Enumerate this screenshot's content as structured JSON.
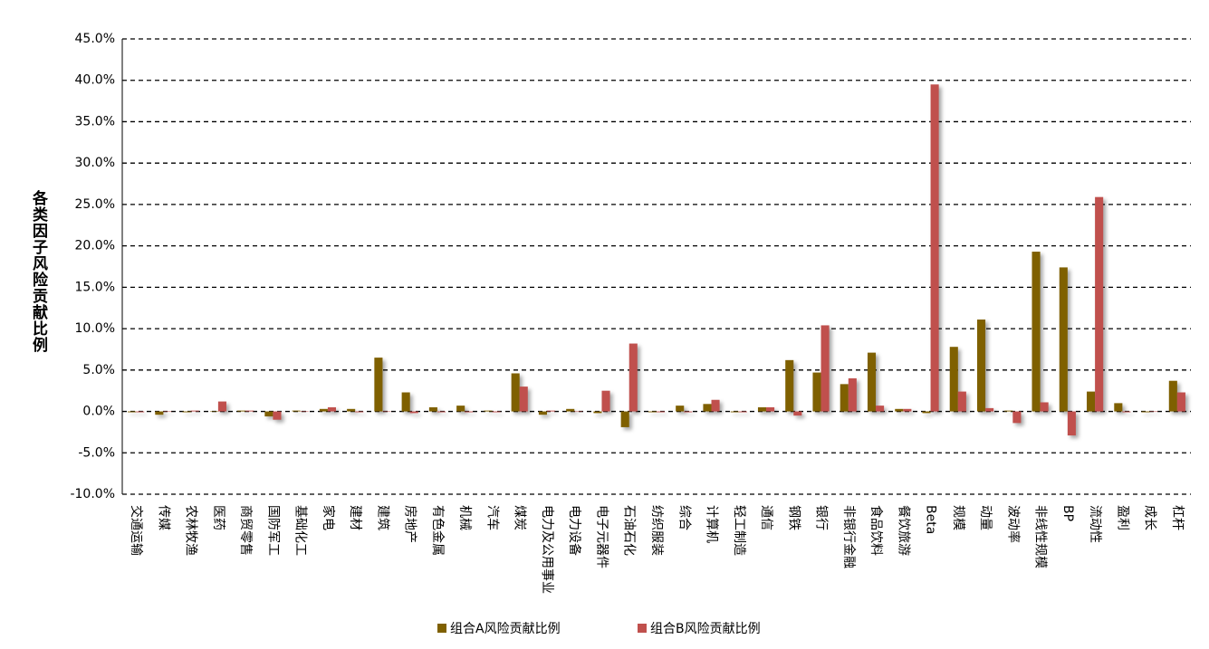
{
  "chart_data": {
    "type": "bar",
    "y_label": "各类因子风险贡献比例",
    "categories": [
      "交通运输",
      "传媒",
      "农林牧渔",
      "医药",
      "商贸零售",
      "国防军工",
      "基础化工",
      "家电",
      "建材",
      "建筑",
      "房地产",
      "有色金属",
      "机械",
      "汽车",
      "煤炭",
      "电力及公用事业",
      "电力设备",
      "电子元器件",
      "石油石化",
      "纺织服装",
      "综合",
      "计算机",
      "轻工制造",
      "通信",
      "钢铁",
      "银行",
      "非银行金融",
      "食品饮料",
      "餐饮旅游",
      "Beta",
      "规模",
      "动量",
      "波动率",
      "非线性规模",
      "BP",
      "流动性",
      "盈利",
      "成长",
      "杠杆"
    ],
    "series": [
      {
        "name": "组合A风险贡献比例",
        "color": "#7f6000",
        "values": [
          -0.1,
          -0.4,
          -0.1,
          0,
          0.1,
          -0.6,
          0.1,
          0.3,
          0.3,
          6.5,
          2.3,
          0.5,
          0.7,
          0.1,
          4.6,
          -0.4,
          0.3,
          -0.2,
          -1.9,
          -0.1,
          0.7,
          0.9,
          -0.1,
          0.5,
          6.2,
          4.7,
          3.3,
          7.1,
          0.3,
          -0.2,
          7.8,
          11.1,
          0.1,
          19.3,
          17.4,
          2.4,
          1.0,
          -0.1,
          3.7
        ]
      },
      {
        "name": "组合B风险贡献比例",
        "color": "#c0504d",
        "values": [
          -0.1,
          0,
          0.1,
          1.2,
          0.1,
          -1.0,
          0,
          0.5,
          -0.1,
          0,
          -0.2,
          -0.1,
          -0.1,
          -0.1,
          3.0,
          0.1,
          0,
          2.5,
          8.2,
          -0.1,
          -0.1,
          1.4,
          -0.1,
          0.5,
          -0.5,
          10.4,
          4.0,
          0.7,
          0.3,
          39.5,
          2.4,
          0.4,
          -1.4,
          1.1,
          -2.9,
          25.9,
          -0.1,
          0,
          2.3
        ]
      }
    ],
    "ylim": [
      -10,
      45
    ],
    "yticks": [
      {
        "value": -10,
        "label": "-10.0%"
      },
      {
        "value": -5,
        "label": "-5.0%"
      },
      {
        "value": 0,
        "label": "0.0%"
      },
      {
        "value": 5,
        "label": "5.0%"
      },
      {
        "value": 10,
        "label": "10.0%"
      },
      {
        "value": 15,
        "label": "15.0%"
      },
      {
        "value": 20,
        "label": "20.0%"
      },
      {
        "value": 25,
        "label": "25.0%"
      },
      {
        "value": 30,
        "label": "30.0%"
      },
      {
        "value": 35,
        "label": "35.0%"
      },
      {
        "value": 40,
        "label": "40.0%"
      },
      {
        "value": 45,
        "label": "45.0%"
      }
    ],
    "grid": true,
    "legend": "bottom"
  }
}
